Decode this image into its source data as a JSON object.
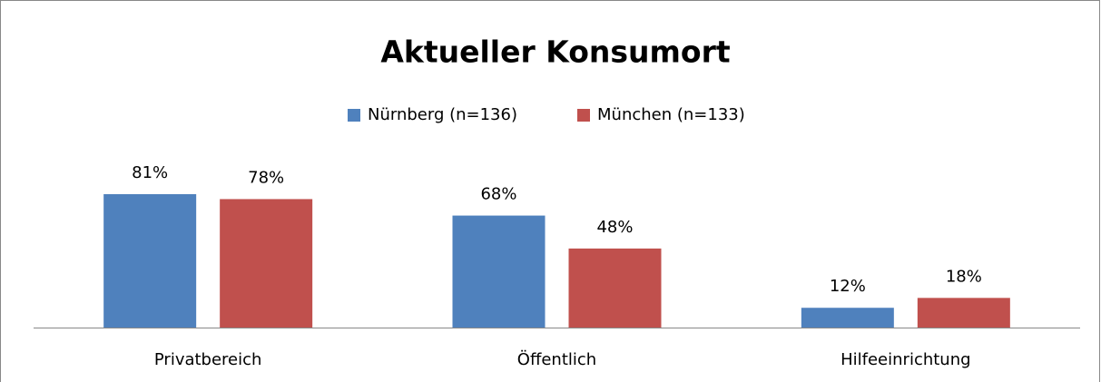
{
  "chart_data": {
    "type": "bar",
    "title": "Aktueller Konsumort",
    "categories": [
      "Privatbereich",
      "Öffentlich",
      "Hilfeeinrichtung"
    ],
    "series": [
      {
        "name": "Nürnberg (n=136)",
        "color": "#4f81bd",
        "values": [
          81,
          68,
          12
        ],
        "value_labels": [
          "81%",
          "68%",
          "12%"
        ]
      },
      {
        "name": "München (n=133)",
        "color": "#c0504d",
        "values": [
          78,
          48,
          18
        ],
        "value_labels": [
          "78%",
          "48%",
          "18%"
        ]
      }
    ]
  }
}
